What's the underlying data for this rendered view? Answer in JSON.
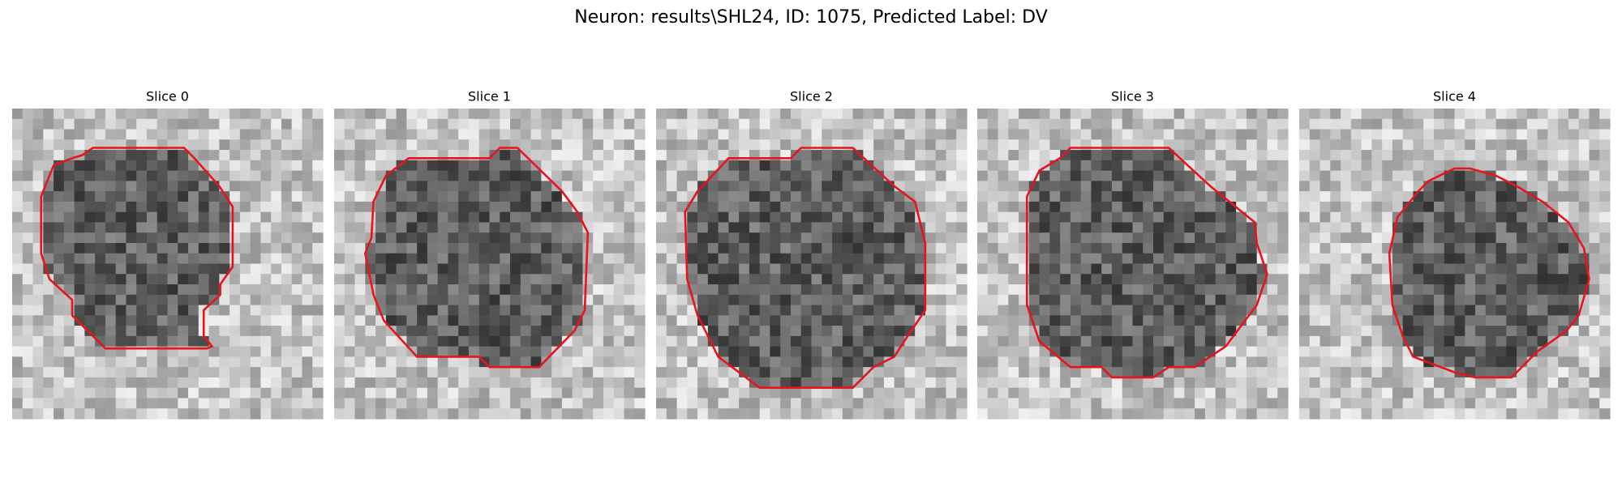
{
  "title": "Neuron: results\\SHL24, ID: 1075, Predicted Label: DV",
  "panels": [
    {
      "title": "Slice 0"
    },
    {
      "title": "Slice 1"
    },
    {
      "title": "Slice 2"
    },
    {
      "title": "Slice 3"
    },
    {
      "title": "Slice 4"
    }
  ]
}
